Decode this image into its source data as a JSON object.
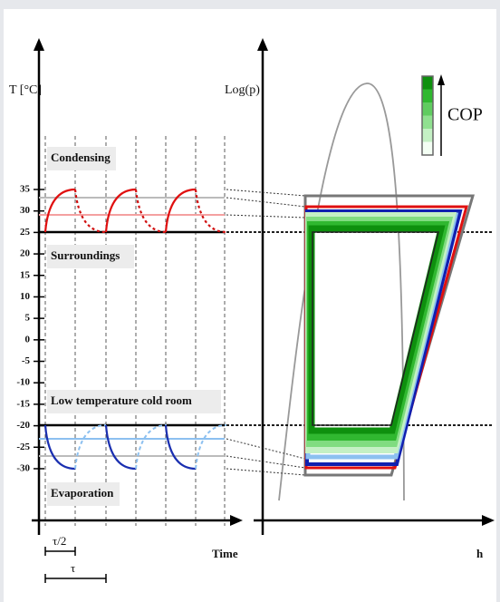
{
  "left_panel": {
    "y_label": "T [°C]",
    "x_label": "Time",
    "yticks": [
      35,
      30,
      25,
      20,
      15,
      10,
      5,
      0,
      -5,
      -10,
      -15,
      -20,
      -25,
      -30
    ],
    "labels": {
      "condensing": "Condensing",
      "surroundings": "Surroundings",
      "cold_room": "Low temperature cold room",
      "evaporation": "Evaporation"
    },
    "half_period": "τ/2",
    "period": "τ"
  },
  "right_panel": {
    "y_label": "Log(p)",
    "x_label": "h",
    "legend": "COP"
  }
}
